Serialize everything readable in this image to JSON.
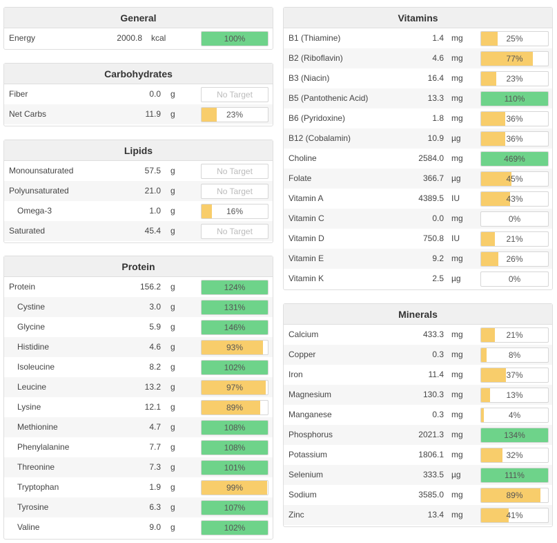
{
  "colors": {
    "green": "#6ed38a",
    "yellow": "#f8cd6b",
    "header_bg": "#f0f0f0"
  },
  "general": {
    "title": "General",
    "rows": [
      {
        "name": "Energy",
        "amount": "2000.8",
        "unit": "kcal",
        "pct": "100%",
        "value": 100,
        "color": "green"
      }
    ]
  },
  "carbohydrates": {
    "title": "Carbohydrates",
    "rows": [
      {
        "name": "Fiber",
        "amount": "0.0",
        "unit": "g",
        "pct": "No Target",
        "value": 0,
        "color": "none"
      },
      {
        "name": "Net Carbs",
        "amount": "11.9",
        "unit": "g",
        "pct": "23%",
        "value": 23,
        "color": "yellow"
      }
    ]
  },
  "lipids": {
    "title": "Lipids",
    "rows": [
      {
        "name": "Monounsaturated",
        "amount": "57.5",
        "unit": "g",
        "pct": "No Target",
        "value": 0,
        "color": "none"
      },
      {
        "name": "Polyunsaturated",
        "amount": "21.0",
        "unit": "g",
        "pct": "No Target",
        "value": 0,
        "color": "none"
      },
      {
        "name": "Omega-3",
        "indent": true,
        "amount": "1.0",
        "unit": "g",
        "pct": "16%",
        "value": 16,
        "color": "yellow"
      },
      {
        "name": "Saturated",
        "amount": "45.4",
        "unit": "g",
        "pct": "No Target",
        "value": 0,
        "color": "none"
      }
    ]
  },
  "protein": {
    "title": "Protein",
    "rows": [
      {
        "name": "Protein",
        "amount": "156.2",
        "unit": "g",
        "pct": "124%",
        "value": 124,
        "color": "green"
      },
      {
        "name": "Cystine",
        "indent": true,
        "amount": "3.0",
        "unit": "g",
        "pct": "131%",
        "value": 131,
        "color": "green"
      },
      {
        "name": "Glycine",
        "indent": true,
        "amount": "5.9",
        "unit": "g",
        "pct": "146%",
        "value": 146,
        "color": "green"
      },
      {
        "name": "Histidine",
        "indent": true,
        "amount": "4.6",
        "unit": "g",
        "pct": "93%",
        "value": 93,
        "color": "yellow"
      },
      {
        "name": "Isoleucine",
        "indent": true,
        "amount": "8.2",
        "unit": "g",
        "pct": "102%",
        "value": 102,
        "color": "green"
      },
      {
        "name": "Leucine",
        "indent": true,
        "amount": "13.2",
        "unit": "g",
        "pct": "97%",
        "value": 97,
        "color": "yellow"
      },
      {
        "name": "Lysine",
        "indent": true,
        "amount": "12.1",
        "unit": "g",
        "pct": "89%",
        "value": 89,
        "color": "yellow"
      },
      {
        "name": "Methionine",
        "indent": true,
        "amount": "4.7",
        "unit": "g",
        "pct": "108%",
        "value": 108,
        "color": "green"
      },
      {
        "name": "Phenylalanine",
        "indent": true,
        "amount": "7.7",
        "unit": "g",
        "pct": "108%",
        "value": 108,
        "color": "green"
      },
      {
        "name": "Threonine",
        "indent": true,
        "amount": "7.3",
        "unit": "g",
        "pct": "101%",
        "value": 101,
        "color": "green"
      },
      {
        "name": "Tryptophan",
        "indent": true,
        "amount": "1.9",
        "unit": "g",
        "pct": "99%",
        "value": 99,
        "color": "yellow"
      },
      {
        "name": "Tyrosine",
        "indent": true,
        "amount": "6.3",
        "unit": "g",
        "pct": "107%",
        "value": 107,
        "color": "green"
      },
      {
        "name": "Valine",
        "indent": true,
        "amount": "9.0",
        "unit": "g",
        "pct": "102%",
        "value": 102,
        "color": "green"
      }
    ]
  },
  "vitamins": {
    "title": "Vitamins",
    "rows": [
      {
        "name": "B1 (Thiamine)",
        "amount": "1.4",
        "unit": "mg",
        "pct": "25%",
        "value": 25,
        "color": "yellow"
      },
      {
        "name": "B2 (Riboflavin)",
        "amount": "4.6",
        "unit": "mg",
        "pct": "77%",
        "value": 77,
        "color": "yellow"
      },
      {
        "name": "B3 (Niacin)",
        "amount": "16.4",
        "unit": "mg",
        "pct": "23%",
        "value": 23,
        "color": "yellow"
      },
      {
        "name": "B5 (Pantothenic Acid)",
        "amount": "13.3",
        "unit": "mg",
        "pct": "110%",
        "value": 110,
        "color": "green"
      },
      {
        "name": "B6 (Pyridoxine)",
        "amount": "1.8",
        "unit": "mg",
        "pct": "36%",
        "value": 36,
        "color": "yellow"
      },
      {
        "name": "B12 (Cobalamin)",
        "amount": "10.9",
        "unit": "µg",
        "pct": "36%",
        "value": 36,
        "color": "yellow"
      },
      {
        "name": "Choline",
        "amount": "2584.0",
        "unit": "mg",
        "pct": "469%",
        "value": 469,
        "color": "green"
      },
      {
        "name": "Folate",
        "amount": "366.7",
        "unit": "µg",
        "pct": "45%",
        "value": 45,
        "color": "yellow"
      },
      {
        "name": "Vitamin A",
        "amount": "4389.5",
        "unit": "IU",
        "pct": "43%",
        "value": 43,
        "color": "yellow"
      },
      {
        "name": "Vitamin C",
        "amount": "0.0",
        "unit": "mg",
        "pct": "0%",
        "value": 0,
        "color": "yellow"
      },
      {
        "name": "Vitamin D",
        "amount": "750.8",
        "unit": "IU",
        "pct": "21%",
        "value": 21,
        "color": "yellow"
      },
      {
        "name": "Vitamin E",
        "amount": "9.2",
        "unit": "mg",
        "pct": "26%",
        "value": 26,
        "color": "yellow"
      },
      {
        "name": "Vitamin K",
        "amount": "2.5",
        "unit": "µg",
        "pct": "0%",
        "value": 0,
        "color": "yellow"
      }
    ]
  },
  "minerals": {
    "title": "Minerals",
    "rows": [
      {
        "name": "Calcium",
        "amount": "433.3",
        "unit": "mg",
        "pct": "21%",
        "value": 21,
        "color": "yellow"
      },
      {
        "name": "Copper",
        "amount": "0.3",
        "unit": "mg",
        "pct": "8%",
        "value": 8,
        "color": "yellow"
      },
      {
        "name": "Iron",
        "amount": "11.4",
        "unit": "mg",
        "pct": "37%",
        "value": 37,
        "color": "yellow"
      },
      {
        "name": "Magnesium",
        "amount": "130.3",
        "unit": "mg",
        "pct": "13%",
        "value": 13,
        "color": "yellow"
      },
      {
        "name": "Manganese",
        "amount": "0.3",
        "unit": "mg",
        "pct": "4%",
        "value": 4,
        "color": "yellow"
      },
      {
        "name": "Phosphorus",
        "amount": "2021.3",
        "unit": "mg",
        "pct": "134%",
        "value": 134,
        "color": "green"
      },
      {
        "name": "Potassium",
        "amount": "1806.1",
        "unit": "mg",
        "pct": "32%",
        "value": 32,
        "color": "yellow"
      },
      {
        "name": "Selenium",
        "amount": "333.5",
        "unit": "µg",
        "pct": "111%",
        "value": 111,
        "color": "green"
      },
      {
        "name": "Sodium",
        "amount": "3585.0",
        "unit": "mg",
        "pct": "89%",
        "value": 89,
        "color": "yellow"
      },
      {
        "name": "Zinc",
        "amount": "13.4",
        "unit": "mg",
        "pct": "41%",
        "value": 41,
        "color": "yellow"
      }
    ]
  }
}
